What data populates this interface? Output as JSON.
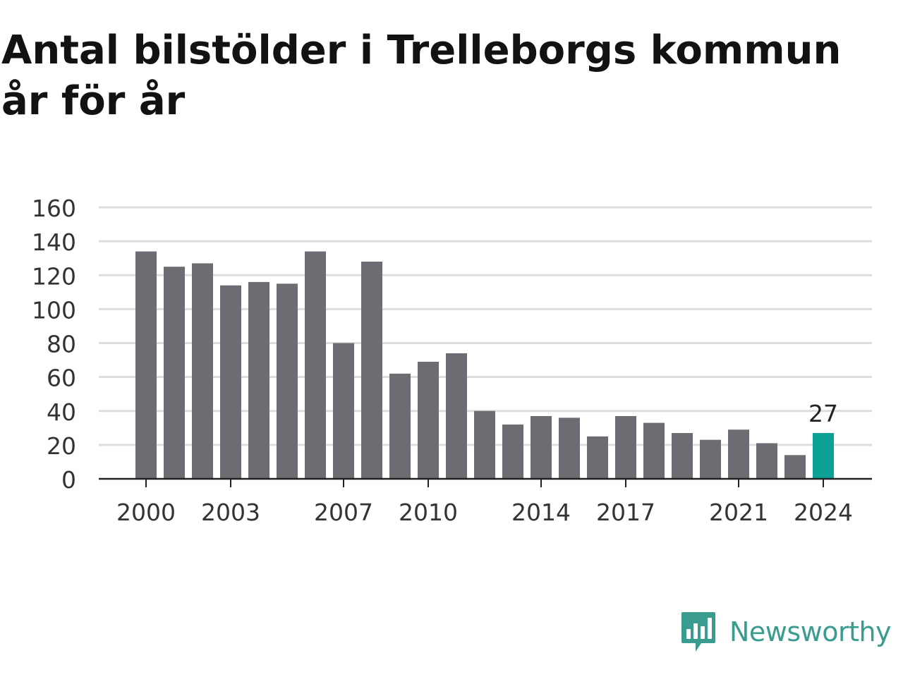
{
  "title": {
    "line1": "Antal bilstölder i Trelleborgs kommun",
    "line2": "år för år"
  },
  "brand": {
    "name": "Newsworthy",
    "icon": "newsworthy-logo-icon",
    "color": "#3a9c8f"
  },
  "colors": {
    "bar": "#6d6c73",
    "highlight": "#0ea297",
    "grid": "#dddddd",
    "axis": "#222222",
    "text": "#333333"
  },
  "chart_data": {
    "type": "bar",
    "categories": [
      "2000",
      "2001",
      "2002",
      "2003",
      "2004",
      "2005",
      "2006",
      "2007",
      "2008",
      "2009",
      "2010",
      "2011",
      "2012",
      "2013",
      "2014",
      "2015",
      "2016",
      "2017",
      "2018",
      "2019",
      "2020",
      "2021",
      "2022",
      "2023",
      "2024"
    ],
    "values": [
      134,
      125,
      127,
      114,
      116,
      115,
      134,
      80,
      128,
      62,
      69,
      74,
      40,
      32,
      37,
      36,
      25,
      37,
      33,
      27,
      23,
      29,
      21,
      14,
      27
    ],
    "x_tick_labels": [
      "2000",
      "2003",
      "2007",
      "2010",
      "2014",
      "2017",
      "2021",
      "2024"
    ],
    "y_ticks": [
      0,
      20,
      40,
      60,
      80,
      100,
      120,
      140,
      160
    ],
    "ylim": [
      0,
      160
    ],
    "highlight_category": "2024",
    "annotation": {
      "category": "2024",
      "label": "27"
    },
    "title": "Antal bilstölder i Trelleborgs kommun år för år",
    "xlabel": "",
    "ylabel": "",
    "grid": true,
    "legend": "none"
  }
}
